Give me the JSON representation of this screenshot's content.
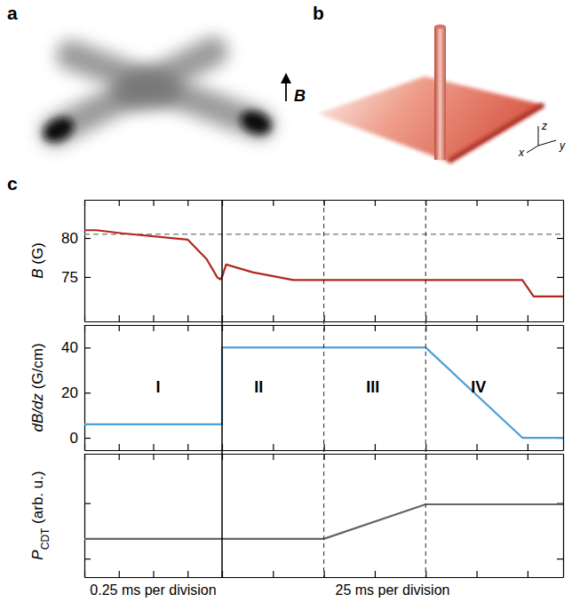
{
  "panel_a": {
    "label": "a",
    "field_label": "B"
  },
  "panel_b": {
    "label": "b",
    "axis_labels": [
      "x",
      "y",
      "z"
    ]
  },
  "panel_c": {
    "label": "c",
    "segments": [
      {
        "label": "0.25 ms per division",
        "xlim": [
          0,
          4
        ]
      },
      {
        "label": "25 ms per division",
        "xlim": [
          4,
          10.7
        ]
      }
    ],
    "boundaries": [
      {
        "x": 4,
        "line_style": "solid"
      },
      {
        "x": 6,
        "line_style": "dashed"
      },
      {
        "x": 8,
        "line_style": "dashed"
      }
    ]
  },
  "chart_data": [
    {
      "type": "line",
      "ylabel": [
        "B",
        " (G)"
      ],
      "xlim": [
        0,
        10.7
      ],
      "xticks": [
        0,
        1,
        2,
        3,
        4,
        5,
        6,
        7,
        8,
        9,
        10
      ],
      "ylim": [
        69.3,
        84.9
      ],
      "yticks": [
        75,
        80
      ],
      "tick_labels": "y",
      "reference_line": {
        "y": 80.5,
        "line_style": "dashed",
        "color": "#8a8a8a"
      },
      "series": [
        {
          "name": "B",
          "color": "#b3261e",
          "line_style": "solid",
          "x": [
            0,
            0.35,
            1.1,
            3.0,
            3.55,
            3.87,
            3.95,
            4.0,
            4.08,
            4.6,
            5.4,
            9.9,
            10.12,
            10.7
          ],
          "values": [
            81.0,
            81.0,
            80.6,
            79.8,
            77.3,
            74.9,
            74.7,
            75.0,
            76.6,
            75.6,
            74.6,
            74.6,
            72.5,
            72.5
          ]
        }
      ]
    },
    {
      "type": "line",
      "ylabel": [
        "dB/dz",
        " (G/cm)"
      ],
      "xlim": [
        0,
        10.7
      ],
      "xticks": [
        0,
        1,
        2,
        3,
        4,
        5,
        6,
        7,
        8,
        9,
        10
      ],
      "ylim": [
        -5.5,
        50
      ],
      "yticks": [
        0,
        20,
        40
      ],
      "tick_labels": "y",
      "annotations": [
        {
          "text": "I",
          "x": 2.14,
          "y": 22
        },
        {
          "text": "II",
          "x": 4.72,
          "y": 22
        },
        {
          "text": "III",
          "x": 6.96,
          "y": 22
        },
        {
          "text": "IV",
          "x": 9.04,
          "y": 22
        }
      ],
      "series": [
        {
          "name": "dB/dz",
          "color": "#4a9fd8",
          "line_style": "solid",
          "x": [
            0,
            4,
            4,
            8,
            9.9,
            10.7
          ],
          "values": [
            6,
            6,
            40,
            40,
            0,
            0
          ]
        }
      ]
    },
    {
      "type": "line",
      "ylabel": [
        "P",
        "CDT",
        " (arb. u.)"
      ],
      "xlim": [
        0,
        10.7
      ],
      "xticks": [
        0,
        1,
        2,
        3,
        4,
        5,
        6,
        7,
        8,
        9,
        10
      ],
      "ylim": [
        0,
        1
      ],
      "yticks": [
        0.15,
        0.6
      ],
      "tick_labels": false,
      "series": [
        {
          "name": "PCDT",
          "color": "#666666",
          "line_style": "solid",
          "x": [
            0,
            6,
            8,
            10.7
          ],
          "values": [
            0.31,
            0.31,
            0.59,
            0.59
          ]
        }
      ]
    }
  ]
}
